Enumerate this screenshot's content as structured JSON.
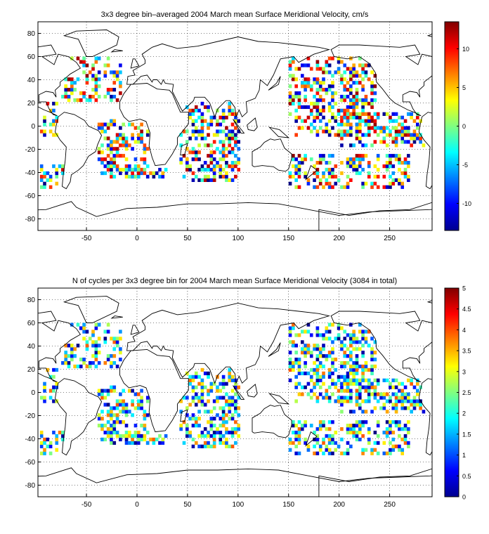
{
  "chart_data": [
    {
      "type": "heatmap",
      "title": "3x3 degree bin–averaged 2004 March mean Surface Meridional Velocity, cm/s",
      "xlabel": "",
      "ylabel": "",
      "xlim": [
        -98,
        292
      ],
      "ylim": [
        -90,
        90
      ],
      "xticks": [
        -50,
        0,
        50,
        100,
        150,
        200,
        250
      ],
      "yticks": [
        -80,
        -60,
        -40,
        -20,
        0,
        20,
        40,
        60,
        80
      ],
      "grid": true,
      "bin_size_deg": 3,
      "colorbar": {
        "range": [
          -13.5,
          13.5
        ],
        "ticks": [
          -10,
          -5,
          0,
          5,
          10
        ],
        "colormap": "jet",
        "placement": "right"
      }
    },
    {
      "type": "heatmap",
      "title": "N of cycles per 3x3 degree bin for 2004 March mean Surface Meridional Velocity (3084 in total)",
      "xlabel": "",
      "ylabel": "",
      "xlim": [
        -98,
        292
      ],
      "ylim": [
        -90,
        90
      ],
      "xticks": [
        -50,
        0,
        50,
        100,
        150,
        200,
        250
      ],
      "yticks": [
        -80,
        -60,
        -40,
        -20,
        0,
        20,
        40,
        60,
        80
      ],
      "grid": true,
      "bin_size_deg": 3,
      "colorbar": {
        "range": [
          0,
          5
        ],
        "ticks": [
          0,
          0.5,
          1,
          1.5,
          2,
          2.5,
          3,
          3.5,
          4,
          4.5,
          5
        ],
        "colormap": "jet",
        "placement": "right"
      }
    }
  ]
}
